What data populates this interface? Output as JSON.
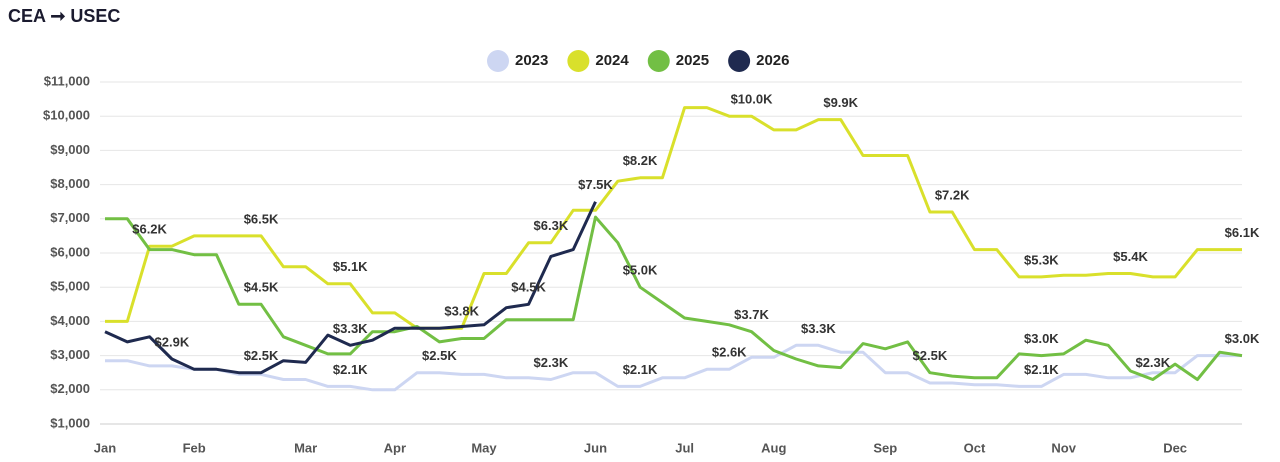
{
  "chart_data": {
    "type": "line",
    "title": "CEA ➞ USEC",
    "categories": [
      "Jan",
      null,
      null,
      null,
      "Feb",
      null,
      null,
      null,
      null,
      "Mar",
      null,
      null,
      null,
      "Apr",
      null,
      null,
      null,
      "May",
      null,
      null,
      null,
      null,
      "Jun",
      null,
      null,
      null,
      "Jul",
      null,
      null,
      null,
      "Aug",
      null,
      null,
      null,
      null,
      "Sep",
      null,
      null,
      null,
      "Oct",
      null,
      null,
      null,
      "Nov",
      null,
      null,
      null,
      null,
      "Dec",
      null,
      null,
      null
    ],
    "series": [
      {
        "name": "2023",
        "color": "#cdd6f2",
        "values": [
          2850,
          2850,
          2700,
          2700,
          2600,
          2600,
          2450,
          2450,
          2300,
          2300,
          2100,
          2100,
          2000,
          2000,
          2500,
          2500,
          2450,
          2450,
          2350,
          2350,
          2300,
          2500,
          2500,
          2100,
          2100,
          2350,
          2350,
          2600,
          2600,
          2950,
          2950,
          3300,
          3300,
          3100,
          3100,
          2500,
          2500,
          2200,
          2200,
          2150,
          2150,
          2100,
          2100,
          2450,
          2450,
          2350,
          2350,
          2500,
          2500,
          3000,
          3000,
          3000
        ],
        "value_labels": [
          null,
          null,
          null,
          null,
          null,
          null,
          null,
          null,
          null,
          null,
          null,
          "$2.1K",
          null,
          null,
          null,
          "$2.5K",
          null,
          null,
          null,
          null,
          "$2.3K",
          null,
          null,
          null,
          "$2.1K",
          null,
          null,
          null,
          "$2.6K",
          null,
          null,
          null,
          "$3.3K",
          null,
          null,
          null,
          null,
          null,
          null,
          null,
          null,
          null,
          "$2.1K",
          null,
          null,
          null,
          null,
          null,
          null,
          null,
          null,
          null
        ]
      },
      {
        "name": "2024",
        "color": "#d9e02b",
        "values": [
          4000,
          4000,
          6200,
          6200,
          6500,
          6500,
          6500,
          6500,
          5600,
          5600,
          5100,
          5100,
          4250,
          4250,
          3800,
          3800,
          3800,
          5400,
          5400,
          6300,
          6300,
          7250,
          7250,
          8100,
          8200,
          8200,
          10250,
          10250,
          10000,
          10000,
          9600,
          9600,
          9900,
          9900,
          8850,
          8850,
          8850,
          7200,
          7200,
          6100,
          6100,
          5300,
          5300,
          5350,
          5350,
          5400,
          5400,
          5300,
          5300,
          6100,
          6100,
          6100
        ],
        "value_labels": [
          null,
          null,
          "$6.2K",
          null,
          null,
          null,
          null,
          "$6.5K",
          null,
          null,
          null,
          "$5.1K",
          null,
          null,
          null,
          null,
          "$3.8K",
          null,
          null,
          null,
          "$6.3K",
          null,
          null,
          null,
          "$8.2K",
          null,
          null,
          null,
          null,
          "$10.0K",
          null,
          null,
          null,
          "$9.9K",
          null,
          null,
          null,
          null,
          "$7.2K",
          null,
          null,
          null,
          "$5.3K",
          null,
          null,
          null,
          "$5.4K",
          null,
          null,
          null,
          null,
          "$6.1K"
        ]
      },
      {
        "name": "2025",
        "color": "#72bf44",
        "values": [
          7000,
          7000,
          6100,
          6100,
          5950,
          5950,
          4500,
          4500,
          3550,
          3300,
          3050,
          3050,
          3700,
          3700,
          3850,
          3400,
          3500,
          3500,
          4050,
          4050,
          4050,
          4050,
          7050,
          6300,
          5000,
          4550,
          4100,
          4000,
          3900,
          3700,
          3150,
          2900,
          2700,
          2650,
          3350,
          3200,
          3400,
          2500,
          2400,
          2350,
          2350,
          3050,
          3000,
          3050,
          3450,
          3300,
          2550,
          2300,
          2750,
          2300,
          3100,
          3000
        ],
        "value_labels": [
          null,
          null,
          null,
          null,
          null,
          null,
          null,
          "$4.5K",
          null,
          null,
          null,
          null,
          null,
          null,
          null,
          null,
          null,
          null,
          null,
          null,
          null,
          null,
          null,
          null,
          "$5.0K",
          null,
          null,
          null,
          null,
          "$3.7K",
          null,
          null,
          null,
          null,
          null,
          null,
          null,
          "$2.5K",
          null,
          null,
          null,
          null,
          "$3.0K",
          null,
          null,
          null,
          null,
          "$2.3K",
          null,
          null,
          null,
          "$3.0K"
        ]
      },
      {
        "name": "2026",
        "color": "#1f2a4f",
        "values": [
          3700,
          3400,
          3550,
          2900,
          2600,
          2600,
          2500,
          2500,
          2850,
          2800,
          3600,
          3300,
          3450,
          3800,
          3800,
          3800,
          3850,
          3900,
          4400,
          4500,
          5900,
          6100,
          7500,
          null,
          null,
          null,
          null,
          null,
          null,
          null,
          null,
          null,
          null,
          null,
          null,
          null,
          null,
          null,
          null,
          null,
          null,
          null,
          null,
          null,
          null,
          null,
          null,
          null,
          null,
          null,
          null,
          null
        ],
        "value_labels": [
          null,
          null,
          null,
          "$2.9K",
          null,
          null,
          null,
          "$2.5K",
          null,
          null,
          null,
          "$3.3K",
          null,
          null,
          null,
          null,
          null,
          null,
          null,
          "$4.5K",
          null,
          null,
          "$7.5K",
          null,
          null,
          null,
          null,
          null,
          null,
          null,
          null,
          null,
          null,
          null,
          null,
          null,
          null,
          null,
          null,
          null,
          null,
          null,
          null,
          null,
          null,
          null,
          null,
          null,
          null,
          null,
          null,
          null
        ]
      }
    ],
    "ylim": [
      1000,
      11000
    ],
    "yticks": [
      {
        "value": 1000,
        "label": "$1,000"
      },
      {
        "value": 2000,
        "label": "$2,000"
      },
      {
        "value": 3000,
        "label": "$3,000"
      },
      {
        "value": 4000,
        "label": "$4,000"
      },
      {
        "value": 5000,
        "label": "$5,000"
      },
      {
        "value": 6000,
        "label": "$6,000"
      },
      {
        "value": 7000,
        "label": "$7,000"
      },
      {
        "value": 8000,
        "label": "$8,000"
      },
      {
        "value": 9000,
        "label": "$9,000"
      },
      {
        "value": 10000,
        "label": "$10,000"
      },
      {
        "value": 11000,
        "label": "$11,000"
      }
    ],
    "grid": true,
    "legend": "top"
  }
}
